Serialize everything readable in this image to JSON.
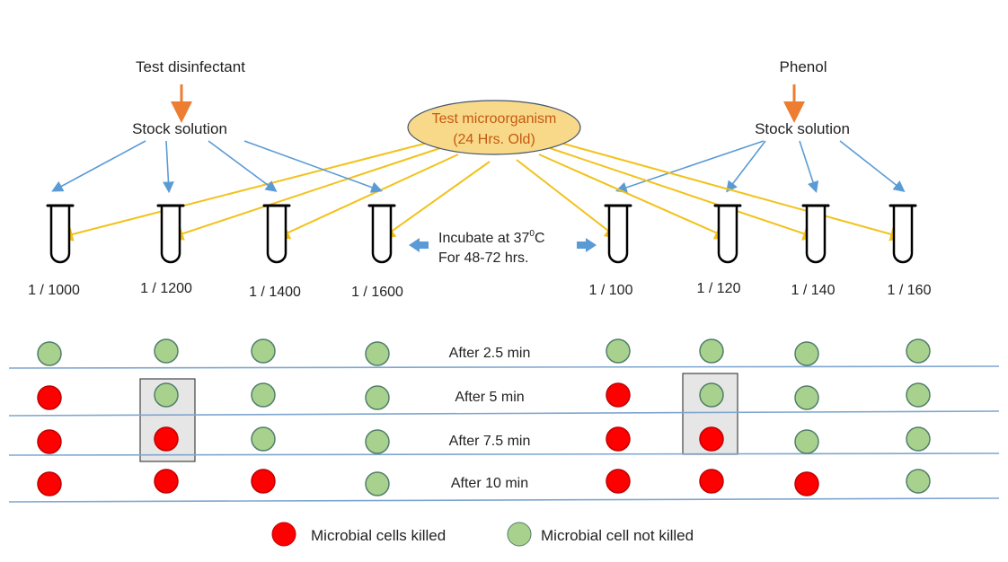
{
  "left": {
    "title": "Test disinfectant",
    "stock": "Stock solution",
    "dilutions": [
      "1 / 1000",
      "1 / 1200",
      "1 / 1400",
      "1 / 1600"
    ]
  },
  "right": {
    "title": "Phenol",
    "stock": "Stock solution",
    "dilutions": [
      "1 / 100",
      "1 / 120",
      "1 / 140",
      "1 / 160"
    ]
  },
  "organism": {
    "line1": "Test microorganism",
    "line2": "(24 Hrs. Old)"
  },
  "incubate": {
    "line1": "Incubate at 37",
    "sup": "0",
    "unit": "C",
    "line2": "For 48-72 hrs."
  },
  "rows": [
    {
      "label": "After 2.5 min",
      "states": [
        "G",
        "G",
        "G",
        "G",
        "G",
        "G",
        "G",
        "G"
      ]
    },
    {
      "label": "After 5 min",
      "states": [
        "R",
        "G",
        "G",
        "G",
        "R",
        "G",
        "G",
        "G"
      ]
    },
    {
      "label": "After 7.5 min",
      "states": [
        "R",
        "R",
        "G",
        "G",
        "R",
        "R",
        "G",
        "G"
      ]
    },
    {
      "label": "After 10 min",
      "states": [
        "R",
        "R",
        "R",
        "G",
        "R",
        "R",
        "R",
        "G"
      ]
    }
  ],
  "legend": {
    "killed": "Microbial cells killed",
    "not_killed": "Microbial cell not killed"
  },
  "colors": {
    "killed": "#ff0000",
    "not_killed": "#a9d18e",
    "blue_arrow": "#5b9bd5",
    "yellow_arrow": "#f2c21b",
    "orange_arrow": "#ed7d31",
    "ellipse": "#f8d98a"
  }
}
